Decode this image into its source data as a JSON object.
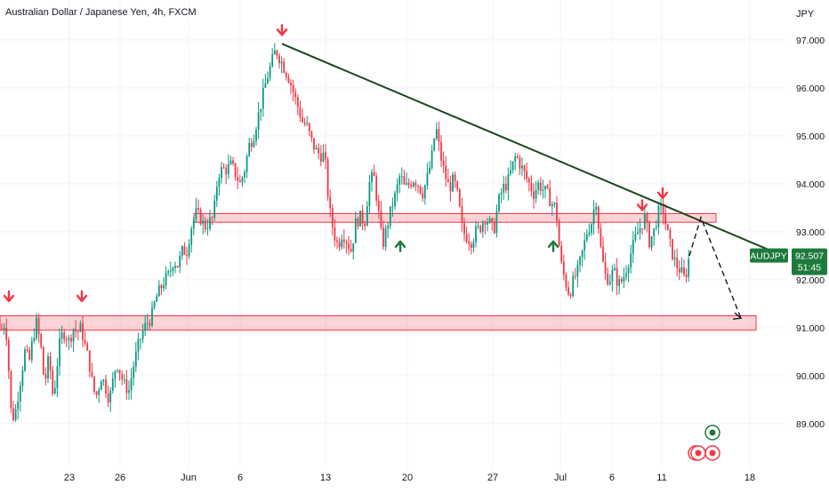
{
  "header": {
    "title": "Australian Dollar / Japanese Yen, 4h, FXCM"
  },
  "price_scale": {
    "currency": "JPY"
  },
  "price_tag": {
    "symbol": "AUDJPY",
    "price": "92.507",
    "countdown": "51:45"
  },
  "chart_data": {
    "type": "candlestick",
    "title": "Australian Dollar / Japanese Yen, 4h, FXCM",
    "ylabel": "JPY",
    "ylim": [
      88.4,
      97.2
    ],
    "y_ticks": [
      "89.000",
      "90.000",
      "91.000",
      "92.000",
      "93.000",
      "94.000",
      "95.000",
      "96.000",
      "97.000"
    ],
    "x_ticks": [
      "23",
      "26",
      "Jun",
      "6",
      "13",
      "20",
      "27",
      "Jul",
      "6",
      "11",
      "18"
    ],
    "grid": true,
    "close_path": [
      [
        0,
        90.5
      ],
      [
        3,
        91.2
      ],
      [
        8,
        90.8
      ],
      [
        12,
        89.3
      ],
      [
        16,
        89.1
      ],
      [
        22,
        89.8
      ],
      [
        28,
        90.5
      ],
      [
        33,
        90.3
      ],
      [
        37,
        90.8
      ],
      [
        41,
        91.1
      ],
      [
        46,
        90.6
      ],
      [
        50,
        89.8
      ],
      [
        55,
        90.4
      ],
      [
        60,
        89.5
      ],
      [
        64,
        90.2
      ],
      [
        68,
        90.8
      ],
      [
        73,
        90.9
      ],
      [
        78,
        90.7
      ],
      [
        82,
        91.0
      ],
      [
        87,
        90.9
      ],
      [
        91,
        91.0
      ],
      [
        96,
        90.6
      ],
      [
        100,
        90.3
      ],
      [
        105,
        89.7
      ],
      [
        109,
        89.6
      ],
      [
        114,
        90.0
      ],
      [
        118,
        89.8
      ],
      [
        123,
        89.5
      ],
      [
        127,
        89.9
      ],
      [
        131,
        90.3
      ],
      [
        136,
        90.0
      ],
      [
        140,
        89.8
      ],
      [
        145,
        89.7
      ],
      [
        150,
        90.2
      ],
      [
        155,
        90.6
      ],
      [
        160,
        90.9
      ],
      [
        165,
        91.1
      ],
      [
        170,
        91.2
      ],
      [
        175,
        91.6
      ],
      [
        180,
        91.8
      ],
      [
        185,
        92.0
      ],
      [
        190,
        92.1
      ],
      [
        195,
        92.4
      ],
      [
        200,
        92.3
      ],
      [
        205,
        92.6
      ],
      [
        210,
        92.6
      ],
      [
        215,
        93.1
      ],
      [
        220,
        93.4
      ],
      [
        225,
        93.3
      ],
      [
        230,
        93.1
      ],
      [
        235,
        93.2
      ],
      [
        240,
        93.3
      ],
      [
        245,
        94.2
      ],
      [
        250,
        94.3
      ],
      [
        255,
        94.3
      ],
      [
        260,
        94.4
      ],
      [
        265,
        94.2
      ],
      [
        270,
        94.0
      ],
      [
        275,
        94.3
      ],
      [
        280,
        94.8
      ],
      [
        285,
        95.0
      ],
      [
        290,
        95.4
      ],
      [
        295,
        95.8
      ],
      [
        300,
        96.2
      ],
      [
        305,
        96.5
      ],
      [
        310,
        96.8
      ],
      [
        315,
        96.6
      ],
      [
        320,
        96.4
      ],
      [
        325,
        96.2
      ],
      [
        330,
        95.9
      ],
      [
        335,
        95.6
      ],
      [
        340,
        95.3
      ],
      [
        345,
        95.2
      ],
      [
        350,
        94.9
      ],
      [
        355,
        94.7
      ],
      [
        360,
        94.6
      ],
      [
        365,
        94.6
      ],
      [
        370,
        93.5
      ],
      [
        375,
        93.0
      ],
      [
        380,
        92.7
      ],
      [
        385,
        93.0
      ],
      [
        390,
        92.8
      ],
      [
        395,
        92.6
      ],
      [
        400,
        93.2
      ],
      [
        405,
        93.3
      ],
      [
        410,
        93.2
      ],
      [
        415,
        94.0
      ],
      [
        420,
        94.2
      ],
      [
        425,
        93.5
      ],
      [
        430,
        92.7
      ],
      [
        435,
        93.1
      ],
      [
        440,
        93.5
      ],
      [
        445,
        93.8
      ],
      [
        450,
        94.2
      ],
      [
        455,
        93.9
      ],
      [
        460,
        94.0
      ],
      [
        465,
        94.1
      ],
      [
        470,
        94.0
      ],
      [
        475,
        93.8
      ],
      [
        480,
        94.1
      ],
      [
        485,
        94.5
      ],
      [
        490,
        95.2
      ],
      [
        495,
        94.6
      ],
      [
        500,
        94.2
      ],
      [
        505,
        93.9
      ],
      [
        510,
        94.1
      ],
      [
        515,
        93.7
      ],
      [
        520,
        93.0
      ],
      [
        525,
        92.9
      ],
      [
        530,
        92.8
      ],
      [
        535,
        93.0
      ],
      [
        540,
        93.1
      ],
      [
        545,
        93.3
      ],
      [
        550,
        93.2
      ],
      [
        555,
        93.0
      ],
      [
        560,
        93.6
      ],
      [
        565,
        93.9
      ],
      [
        570,
        94.0
      ],
      [
        575,
        94.3
      ],
      [
        580,
        94.6
      ],
      [
        585,
        94.4
      ],
      [
        590,
        94.2
      ],
      [
        595,
        94.0
      ],
      [
        600,
        93.8
      ],
      [
        605,
        94.0
      ],
      [
        610,
        93.9
      ],
      [
        615,
        93.8
      ],
      [
        620,
        93.6
      ],
      [
        625,
        93.5
      ],
      [
        630,
        92.4
      ],
      [
        635,
        92.0
      ],
      [
        640,
        91.7
      ],
      [
        645,
        92.0
      ],
      [
        650,
        92.2
      ],
      [
        655,
        92.6
      ],
      [
        660,
        93.0
      ],
      [
        665,
        93.2
      ],
      [
        670,
        93.7
      ],
      [
        675,
        92.7
      ],
      [
        680,
        92.1
      ],
      [
        685,
        92.0
      ],
      [
        690,
        92.2
      ],
      [
        695,
        91.9
      ],
      [
        700,
        92.0
      ],
      [
        705,
        92.3
      ],
      [
        710,
        92.6
      ],
      [
        715,
        92.9
      ],
      [
        720,
        93.1
      ],
      [
        725,
        93.3
      ],
      [
        730,
        92.8
      ],
      [
        735,
        93.0
      ],
      [
        740,
        93.4
      ],
      [
        745,
        93.5
      ],
      [
        750,
        93.0
      ],
      [
        755,
        92.6
      ],
      [
        760,
        92.3
      ],
      [
        765,
        92.2
      ],
      [
        770,
        92.0
      ],
      [
        775,
        92.5
      ]
    ],
    "annotations": {
      "trendline": {
        "from": [
          317,
          96.92
        ],
        "to": [
          874,
          92.55
        ]
      },
      "resistance_zone": {
        "x": [
          218,
          805
        ],
        "y": [
          93.2,
          93.38
        ]
      },
      "support_zone": {
        "x": [
          0,
          850
        ],
        "y": [
          90.95,
          91.25
        ]
      },
      "projection": [
        [
          775,
          92.5
        ],
        [
          788,
          93.3
        ],
        [
          833,
          91.2
        ]
      ],
      "red_markers": [
        [
          10,
          91.5
        ],
        [
          92,
          91.5
        ],
        [
          317,
          97.05
        ],
        [
          722,
          93.4
        ],
        [
          745,
          93.65
        ]
      ],
      "green_markers": [
        [
          450,
          92.8
        ],
        [
          622,
          92.8
        ]
      ]
    }
  }
}
